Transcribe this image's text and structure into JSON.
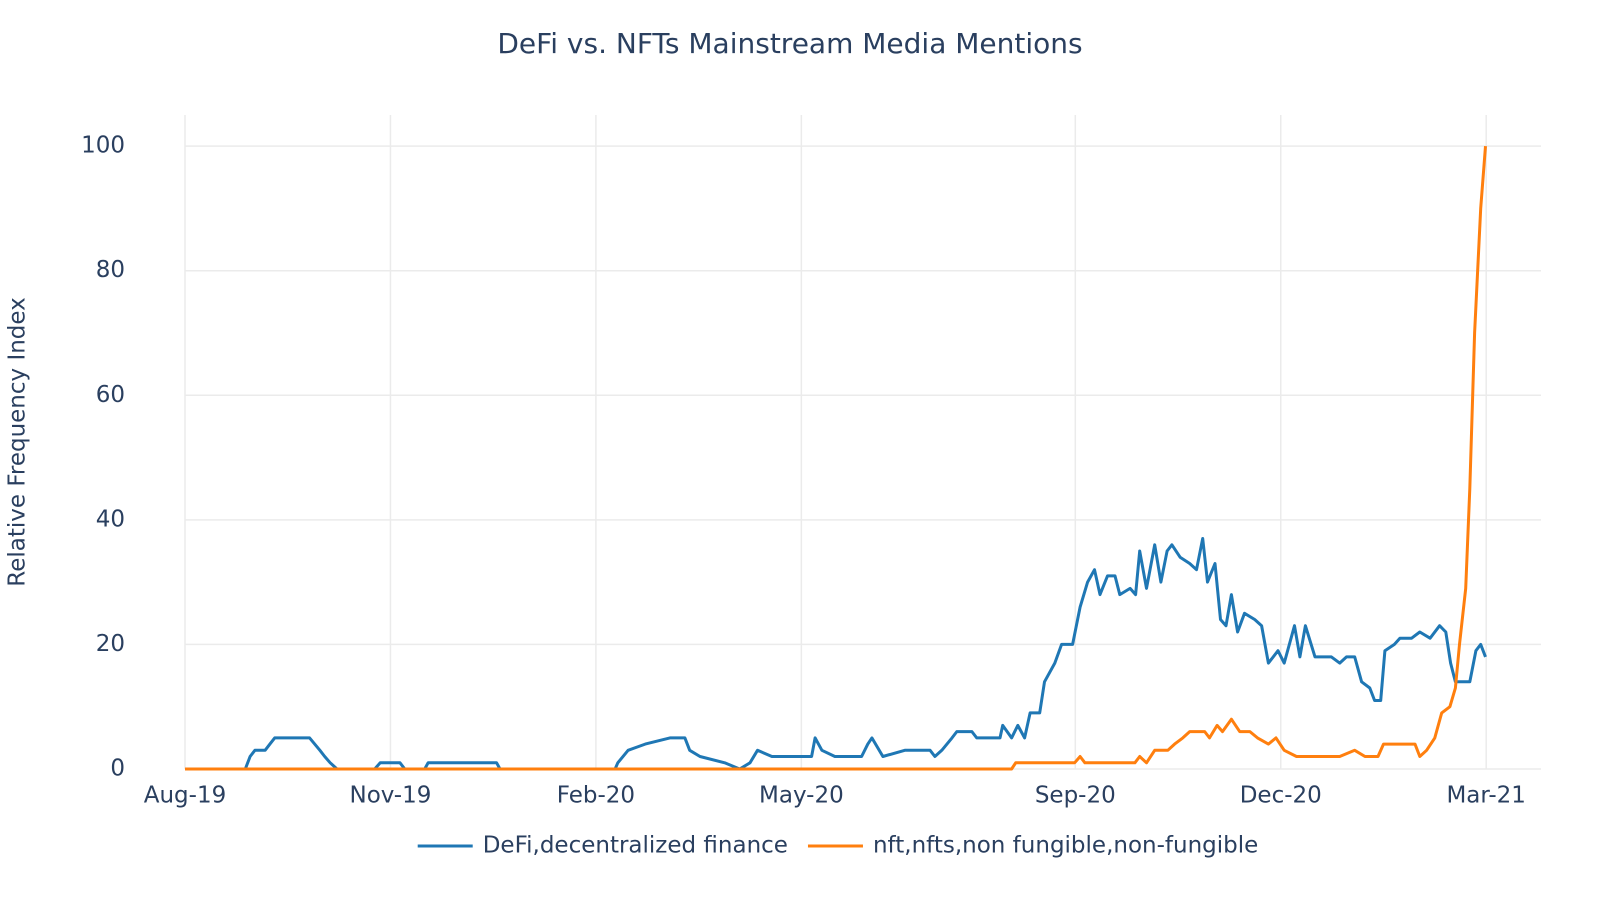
{
  "chart_data": {
    "type": "line",
    "title": "DeFi vs. NFTs Mainstream Media Mentions",
    "y_label": "Relative Frequency Index",
    "xlim": [
      0,
      19.8
    ],
    "xticks": [
      {
        "value": 0,
        "label": "Aug-19"
      },
      {
        "value": 3,
        "label": "Nov-19"
      },
      {
        "value": 6,
        "label": "Feb-20"
      },
      {
        "value": 9,
        "label": "May-20"
      },
      {
        "value": 13,
        "label": "Sep-20"
      },
      {
        "value": 16,
        "label": "Dec-20"
      },
      {
        "value": 19,
        "label": "Mar-21"
      }
    ],
    "ylim": [
      0,
      105
    ],
    "yticks": [
      0,
      20,
      40,
      60,
      80,
      100
    ],
    "grid": true,
    "legend": "bottom",
    "series": [
      {
        "name": "DeFi,decentralized finance",
        "color": "#1f77b4",
        "x": [
          0,
          0.88,
          0.95,
          1.02,
          1.17,
          1.24,
          1.31,
          1.82,
          1.97,
          2.04,
          2.12,
          2.22,
          2.77,
          2.85,
          3.14,
          3.21,
          3.5,
          3.55,
          4.55,
          4.6,
          6.28,
          6.32,
          6.47,
          6.72,
          7.08,
          7.3,
          7.37,
          7.52,
          7.88,
          8.1,
          8.25,
          8.36,
          8.57,
          9.15,
          9.2,
          9.3,
          9.49,
          9.88,
          9.97,
          10.03,
          10.19,
          10.51,
          10.88,
          10.95,
          11.05,
          11.2,
          11.27,
          11.49,
          11.56,
          11.9,
          11.94,
          12.07,
          12.16,
          12.26,
          12.34,
          12.48,
          12.55,
          12.7,
          12.8,
          12.96,
          13.07,
          13.18,
          13.28,
          13.36,
          13.47,
          13.58,
          13.65,
          13.8,
          13.88,
          13.94,
          14.04,
          14.16,
          14.25,
          14.34,
          14.41,
          14.53,
          14.67,
          14.77,
          14.86,
          14.93,
          15.04,
          15.12,
          15.2,
          15.28,
          15.37,
          15.47,
          15.62,
          15.72,
          15.82,
          15.96,
          16.05,
          16.2,
          16.28,
          16.36,
          16.5,
          16.74,
          16.86,
          16.96,
          17.08,
          17.18,
          17.3,
          17.37,
          17.46,
          17.52,
          17.66,
          17.74,
          17.91,
          18.03,
          18.18,
          18.32,
          18.41,
          18.48,
          18.55,
          18.76,
          18.85,
          18.92,
          18.99
        ],
        "values": [
          0,
          0,
          2,
          3,
          3,
          4,
          5,
          5,
          3,
          2,
          1,
          0,
          0,
          1,
          1,
          0,
          0,
          1,
          1,
          0,
          0,
          1,
          3,
          4,
          5,
          5,
          3,
          2,
          1,
          0,
          1,
          3,
          2,
          2,
          5,
          3,
          2,
          2,
          4,
          5,
          2,
          3,
          3,
          2,
          3,
          5,
          6,
          6,
          5,
          5,
          7,
          5,
          7,
          5,
          9,
          9,
          14,
          17,
          20,
          20,
          26,
          30,
          32,
          28,
          31,
          31,
          28,
          29,
          28,
          35,
          29,
          36,
          30,
          35,
          36,
          34,
          33,
          32,
          37,
          30,
          33,
          24,
          23,
          28,
          22,
          25,
          24,
          23,
          17,
          19,
          17,
          23,
          18,
          23,
          18,
          18,
          17,
          18,
          18,
          14,
          13,
          11,
          11,
          19,
          20,
          21,
          21,
          22,
          21,
          23,
          22,
          17,
          14,
          14,
          19,
          20,
          18
        ]
      },
      {
        "name": "nft,nfts,non fungible,non-fungible",
        "color": "#ff7f0e",
        "x": [
          0,
          12.07,
          12.13,
          12.99,
          13.07,
          13.14,
          13.87,
          13.94,
          14.04,
          14.16,
          14.35,
          14.45,
          14.57,
          14.67,
          14.89,
          14.96,
          15.07,
          15.15,
          15.28,
          15.4,
          15.55,
          15.66,
          15.82,
          15.93,
          16.05,
          16.23,
          16.86,
          17.08,
          17.23,
          17.42,
          17.5,
          17.96,
          18.03,
          18.13,
          18.25,
          18.35,
          18.47,
          18.55,
          18.61,
          18.7,
          18.76,
          18.83,
          18.92,
          18.99
        ],
        "values": [
          0,
          0,
          1,
          1,
          2,
          1,
          1,
          2,
          1,
          3,
          3,
          4,
          5,
          6,
          6,
          5,
          7,
          6,
          8,
          6,
          6,
          5,
          4,
          5,
          3,
          2,
          2,
          3,
          2,
          2,
          4,
          4,
          2,
          3,
          5,
          9,
          10,
          13,
          20,
          29,
          45,
          70,
          90,
          100
        ]
      }
    ]
  }
}
